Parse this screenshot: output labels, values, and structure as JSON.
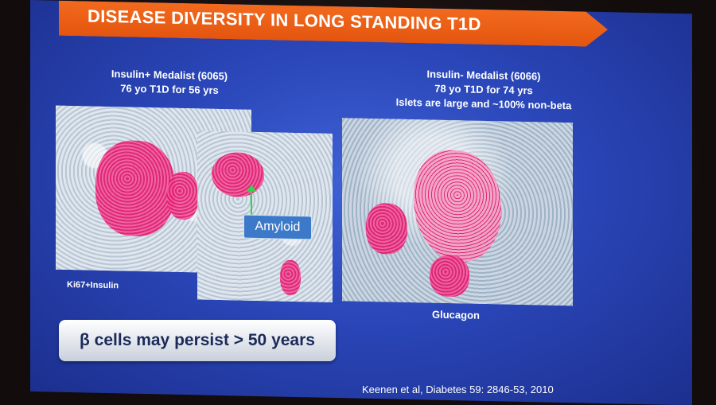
{
  "slide": {
    "title": "DISEASE DIVERSITY IN LONG STANDING T1D",
    "left_panel": {
      "caption_line1": "Insulin+ Medalist (6065)",
      "caption_line2": "76 yo  T1D for 56 yrs",
      "annotation": "Amyloid",
      "stain_label": "Ki67+Insulin"
    },
    "right_panel": {
      "caption_line1": "Insulin- Medalist (6066)",
      "caption_line2": "78 yo  T1D for 74 yrs",
      "caption_line3": "Islets are large and ~100% non-beta",
      "stain_label": "Glucagon"
    },
    "key_point": "β cells may persist > 50 years",
    "citation": "Keenen et al, Diabetes 59: 2846-53, 2010"
  }
}
